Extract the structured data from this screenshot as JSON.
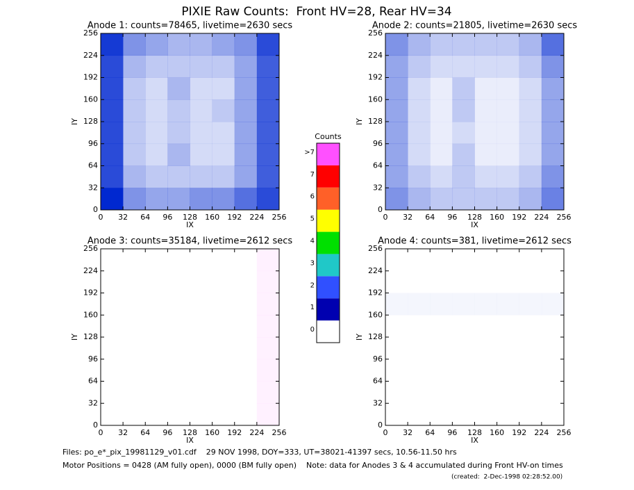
{
  "title": "PIXIE Raw Counts:  Front HV=28, Rear HV=34",
  "chart_data": [
    {
      "type": "heatmap",
      "title": "Anode 1: counts=78465, livetime=2630 secs",
      "xlabel": "IX",
      "ylabel": "IY",
      "xlim": [
        0,
        256
      ],
      "ylim": [
        0,
        256
      ],
      "xticks": [
        0,
        32,
        64,
        96,
        128,
        160,
        192,
        224,
        256
      ],
      "yticks": [
        0,
        32,
        64,
        96,
        128,
        160,
        192,
        224,
        256
      ],
      "color": "#0028d0",
      "z": [
        [
          1.2,
          0.6,
          0.5,
          0.5,
          0.6,
          0.6,
          0.8,
          1.0
        ],
        [
          1.0,
          0.4,
          0.3,
          0.3,
          0.3,
          0.3,
          0.5,
          0.9
        ],
        [
          1.0,
          0.3,
          0.2,
          0.4,
          0.2,
          0.2,
          0.5,
          0.9
        ],
        [
          1.0,
          0.3,
          0.2,
          0.3,
          0.2,
          0.2,
          0.5,
          0.9
        ],
        [
          1.0,
          0.3,
          0.2,
          0.3,
          0.2,
          0.3,
          0.5,
          0.9
        ],
        [
          1.0,
          0.3,
          0.2,
          0.4,
          0.2,
          0.2,
          0.5,
          0.9
        ],
        [
          1.0,
          0.4,
          0.3,
          0.3,
          0.3,
          0.3,
          0.5,
          0.9
        ],
        [
          1.1,
          0.6,
          0.5,
          0.4,
          0.4,
          0.5,
          0.6,
          1.0
        ]
      ]
    },
    {
      "type": "heatmap",
      "title": "Anode 2: counts=21805, livetime=2630 secs",
      "xlabel": "IX",
      "ylabel": "IY",
      "xlim": [
        0,
        256
      ],
      "ylim": [
        0,
        256
      ],
      "xticks": [
        0,
        32,
        64,
        96,
        128,
        160,
        192,
        224,
        256
      ],
      "yticks": [
        0,
        32,
        64,
        96,
        128,
        160,
        192,
        224,
        256
      ],
      "color": "#0028d0",
      "z": [
        [
          0.6,
          0.4,
          0.3,
          0.3,
          0.3,
          0.3,
          0.4,
          0.7
        ],
        [
          0.5,
          0.3,
          0.2,
          0.3,
          0.2,
          0.2,
          0.3,
          0.6
        ],
        [
          0.5,
          0.2,
          0.1,
          0.3,
          0.1,
          0.1,
          0.2,
          0.5
        ],
        [
          0.5,
          0.2,
          0.1,
          0.2,
          0.1,
          0.1,
          0.2,
          0.5
        ],
        [
          0.5,
          0.2,
          0.1,
          0.3,
          0.1,
          0.1,
          0.2,
          0.5
        ],
        [
          0.5,
          0.2,
          0.1,
          0.3,
          0.1,
          0.1,
          0.2,
          0.5
        ],
        [
          0.5,
          0.3,
          0.2,
          0.2,
          0.2,
          0.2,
          0.3,
          0.6
        ],
        [
          0.6,
          0.4,
          0.3,
          0.3,
          0.3,
          0.3,
          0.4,
          0.8
        ]
      ]
    },
    {
      "type": "heatmap",
      "title": "Anode 3: counts=35184, livetime=2612 secs",
      "xlabel": "IX",
      "ylabel": "IY",
      "xlim": [
        0,
        256
      ],
      "ylim": [
        0,
        256
      ],
      "xticks": [
        0,
        32,
        64,
        96,
        128,
        160,
        192,
        224,
        256
      ],
      "yticks": [
        0,
        32,
        64,
        96,
        128,
        160,
        192,
        224,
        256
      ],
      "color": "#ff50ff",
      "z": [
        [
          0,
          0,
          0,
          0,
          0,
          0,
          0,
          0.1
        ],
        [
          0,
          0,
          0,
          0,
          0,
          0,
          0,
          0.1
        ],
        [
          0,
          0,
          0,
          0,
          0,
          0,
          0,
          0.1
        ],
        [
          0,
          0,
          0,
          0,
          0,
          0,
          0,
          0.1
        ],
        [
          0,
          0,
          0,
          0,
          0,
          0,
          0,
          0.1
        ],
        [
          0,
          0,
          0,
          0,
          0,
          0,
          0,
          0.1
        ],
        [
          0,
          0,
          0,
          0,
          0,
          0,
          0,
          0.1
        ],
        [
          0,
          0,
          0,
          0,
          0,
          0,
          0,
          0.1
        ]
      ]
    },
    {
      "type": "heatmap",
      "title": "Anode 4: counts=381, livetime=2612 secs",
      "xlabel": "IX",
      "ylabel": "IY",
      "xlim": [
        0,
        256
      ],
      "ylim": [
        0,
        256
      ],
      "xticks": [
        0,
        32,
        64,
        96,
        128,
        160,
        192,
        224,
        256
      ],
      "yticks": [
        0,
        32,
        64,
        96,
        128,
        160,
        192,
        224,
        256
      ],
      "color": "#0028d0",
      "z": [
        [
          0,
          0,
          0,
          0,
          0,
          0,
          0,
          0
        ],
        [
          0,
          0,
          0,
          0,
          0,
          0,
          0,
          0
        ],
        [
          0,
          0,
          0,
          0,
          0,
          0,
          0,
          0
        ],
        [
          0,
          0,
          0,
          0,
          0,
          0,
          0,
          0
        ],
        [
          0,
          0,
          0,
          0,
          0,
          0,
          0,
          0
        ],
        [
          0.05,
          0.05,
          0.05,
          0.05,
          0.05,
          0.05,
          0.05,
          0.05
        ],
        [
          0,
          0,
          0,
          0,
          0,
          0,
          0,
          0
        ],
        [
          0,
          0,
          0,
          0,
          0,
          0,
          0,
          0
        ]
      ]
    }
  ],
  "colorbar": {
    "title": "Counts",
    "levels": [
      0,
      1,
      2,
      3,
      4,
      5,
      6,
      7,
      {
        "value": 8,
        "label": ">7"
      }
    ],
    "colors": [
      "#ffffff",
      "#0000b0",
      "#3050ff",
      "#20c8c8",
      "#00e000",
      "#ffff00",
      "#ff6028",
      "#ff0000",
      "#ff50ff"
    ]
  },
  "footer": [
    "Files: po_e*_pix_19981129_v01.cdf    29 NOV 1998, DOY=333, UT=38021-41397 secs, 10.56-11.50 hrs",
    "Motor Positions = 0428 (AM fully open), 0000 (BM fully open)    Note: data for Anodes 3 & 4 accumulated during Front HV-on times",
    "(created:  2-Dec-1998 02:28:52.00)"
  ]
}
